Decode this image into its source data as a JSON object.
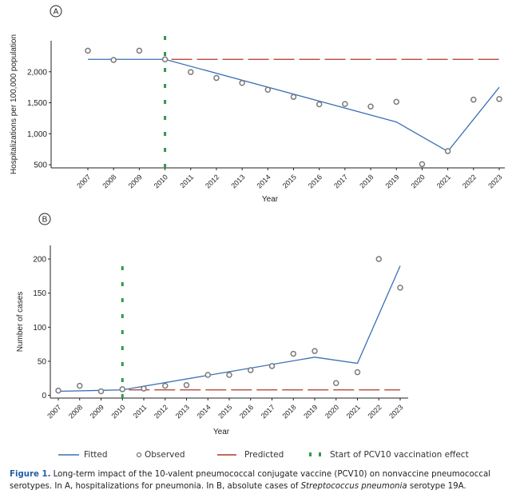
{
  "chart_data": [
    {
      "panel_label": "A",
      "type": "line",
      "xlabel": "Year",
      "ylabel": "Hospitalizations per 100,000 population",
      "categories": [
        "2007",
        "2008",
        "2009",
        "2010",
        "2011",
        "2012",
        "2013",
        "2014",
        "2015",
        "2016",
        "2017",
        "2018",
        "2019",
        "2020",
        "2021",
        "2022",
        "2023"
      ],
      "ylim": [
        450,
        2500
      ],
      "yticks": [
        500,
        1000,
        1500,
        2000
      ],
      "ytick_labels": [
        "500",
        "1,000",
        "1,500",
        "2,000"
      ],
      "series": [
        {
          "name": "Fitted",
          "kind": "line",
          "x": [
            2007,
            2010,
            2019,
            2021,
            2023
          ],
          "y": [
            2200,
            2200,
            1190,
            715,
            1750
          ]
        },
        {
          "name": "Observed",
          "kind": "scatter",
          "x": [
            2007,
            2008,
            2009,
            2010,
            2011,
            2012,
            2013,
            2014,
            2015,
            2016,
            2017,
            2018,
            2019,
            2020,
            2021,
            2022,
            2023
          ],
          "y": [
            2340,
            2190,
            2340,
            2200,
            1995,
            1900,
            1820,
            1710,
            1595,
            1475,
            1480,
            1440,
            1515,
            510,
            720,
            1550,
            1560
          ]
        },
        {
          "name": "Predicted",
          "kind": "dashed",
          "x": [
            2010,
            2023
          ],
          "y": [
            2200,
            2200
          ]
        }
      ],
      "vline": {
        "name": "Start of PCV10 vaccination effect",
        "x": 2010
      }
    },
    {
      "panel_label": "B",
      "type": "line",
      "xlabel": "Year",
      "ylabel": "Number of cases",
      "categories": [
        "2007",
        "2008",
        "2009",
        "2010",
        "2011",
        "2012",
        "2013",
        "2014",
        "2015",
        "2016",
        "2017",
        "2018",
        "2019",
        "2020",
        "2021",
        "2022",
        "2023"
      ],
      "ylim": [
        -4,
        220
      ],
      "yticks": [
        0,
        50,
        100,
        150,
        200
      ],
      "ytick_labels": [
        "0",
        "50",
        "100",
        "150",
        "200"
      ],
      "series": [
        {
          "name": "Fitted",
          "kind": "line",
          "x": [
            2007,
            2010,
            2019,
            2021,
            2023
          ],
          "y": [
            6,
            8,
            56,
            47,
            190
          ]
        },
        {
          "name": "Observed",
          "kind": "scatter",
          "x": [
            2007,
            2008,
            2009,
            2010,
            2011,
            2012,
            2013,
            2014,
            2015,
            2016,
            2017,
            2018,
            2019,
            2020,
            2021,
            2022,
            2023
          ],
          "y": [
            7,
            14,
            6,
            9,
            10,
            14,
            15,
            30,
            30,
            37,
            43,
            61,
            65,
            18,
            34,
            200,
            158
          ]
        },
        {
          "name": "Predicted",
          "kind": "dashed",
          "x": [
            2010,
            2023
          ],
          "y": [
            8,
            8
          ]
        }
      ],
      "vline": {
        "name": "Start of PCV10 vaccination effect",
        "x": 2010,
        "ymax": 210
      }
    }
  ],
  "legend": {
    "fitted": "Fitted",
    "observed": "Observed",
    "predicted": "Predicted",
    "vline": "Start of PCV10 vaccination effect",
    "position": "bottom"
  },
  "colors": {
    "fitted": "#3a6fb5",
    "observed": "#7a7a7a",
    "predicted": "#b0352c",
    "vline": "#2e9a4a"
  },
  "caption": {
    "label": "Figure 1.",
    "text1": " Long-term impact of the 10-valent pneumococcal conjugate vaccine (PCV10) on nonvaccine pneumococcal serotypes. In A, hospitalizations for pneumonia. In B, absolute cases of ",
    "italic": "Streptococcus pneumonia",
    "text2": " serotype 19A."
  }
}
